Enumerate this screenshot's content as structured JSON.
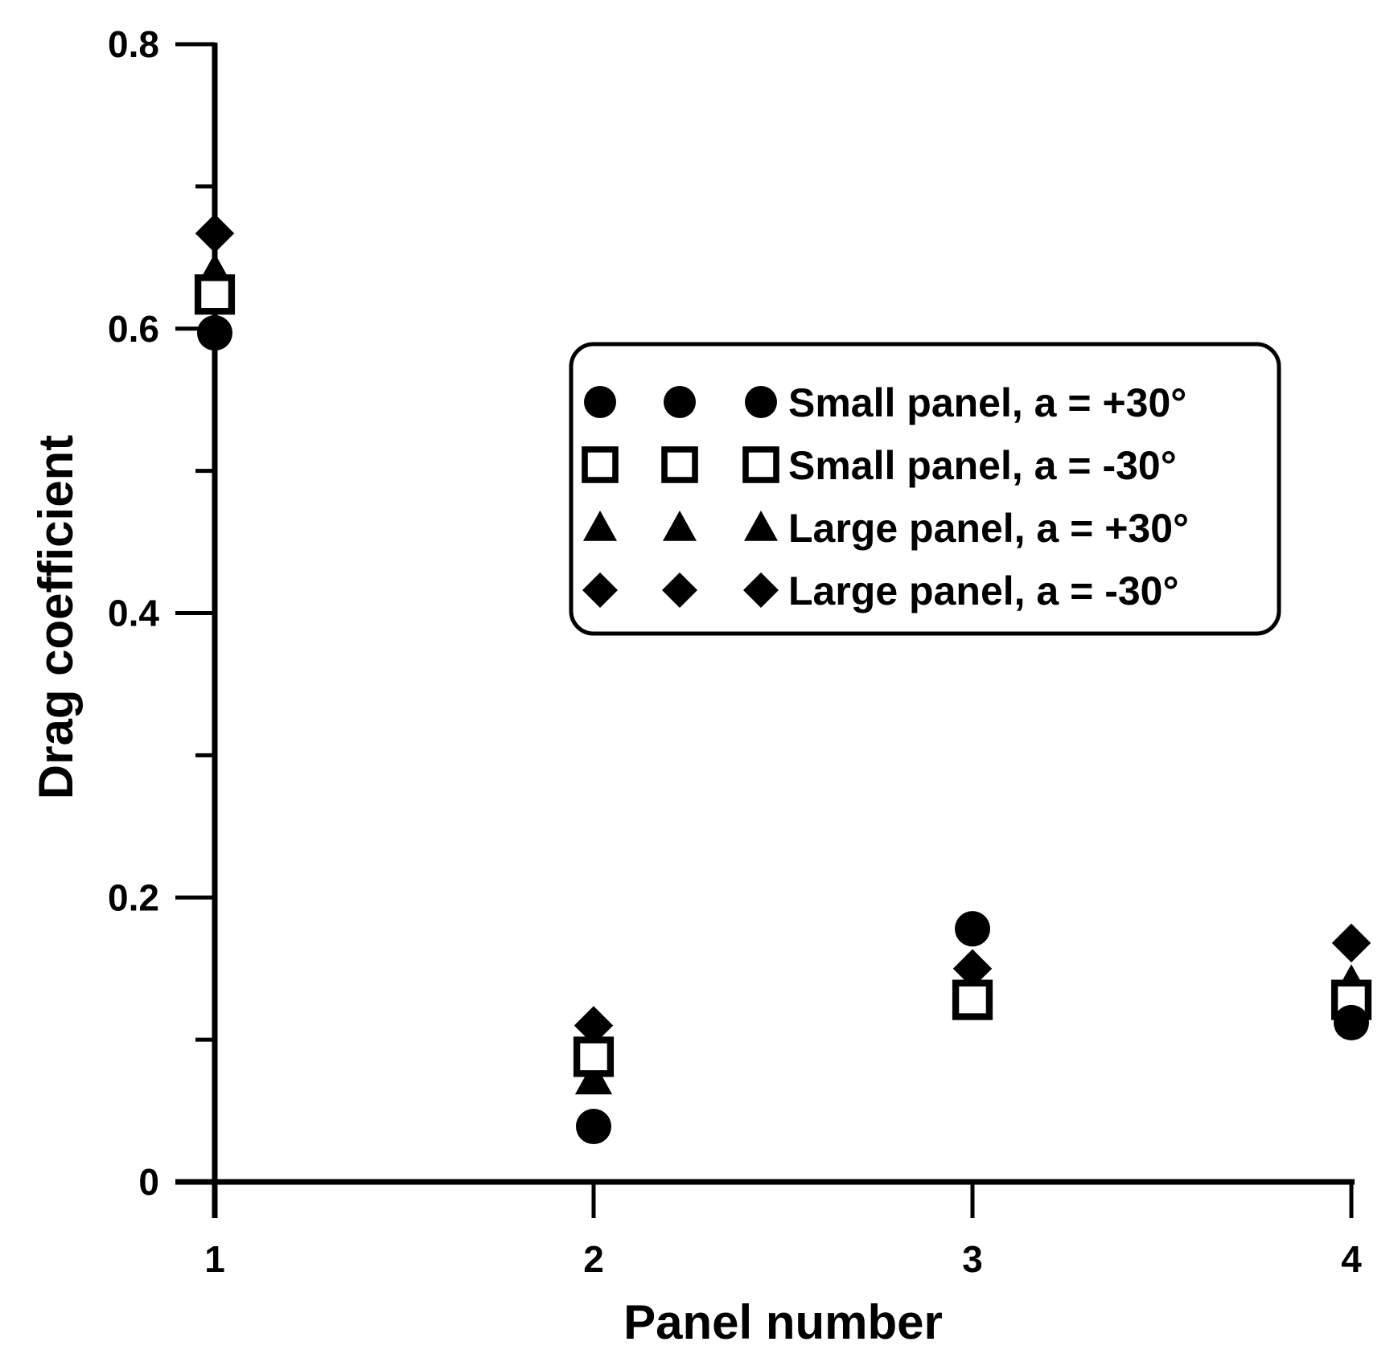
{
  "chart_data": {
    "type": "scatter",
    "title": "",
    "xlabel": "Panel number",
    "ylabel": "Drag coefficient",
    "x": [
      1,
      2,
      3,
      4
    ],
    "xticks": [
      "1",
      "2",
      "3",
      "4"
    ],
    "xlim": [
      1,
      4
    ],
    "ylim": [
      0,
      0.8
    ],
    "yticks": [
      {
        "value": 0,
        "label": "0"
      },
      {
        "value": 0.2,
        "label": "0.2"
      },
      {
        "value": 0.4,
        "label": "0.4"
      },
      {
        "value": 0.6,
        "label": "0.6"
      },
      {
        "value": 0.8,
        "label": "0.8"
      }
    ],
    "yminor_ticks": [
      0.1,
      0.3,
      0.5,
      0.7
    ],
    "grid": false,
    "legend_position": "top-right",
    "series": [
      {
        "name": "Small panel, a = +30°",
        "marker": "circle-filled",
        "values": [
          0.597,
          0.039,
          0.178,
          0.112
        ]
      },
      {
        "name": "Small panel, a = -30°",
        "marker": "square-open",
        "values": [
          0.624,
          0.088,
          0.128,
          0.128
        ]
      },
      {
        "name": "Large panel, a = +30°",
        "marker": "triangle-filled",
        "values": [
          0.64,
          0.072,
          0.14,
          0.14
        ]
      },
      {
        "name": "Large panel, a = -30°",
        "marker": "diamond-filled",
        "values": [
          0.667,
          0.11,
          0.15,
          0.168
        ]
      }
    ],
    "colors": {
      "marker": "#000000",
      "axis": "#000000",
      "background": "#ffffff"
    }
  }
}
